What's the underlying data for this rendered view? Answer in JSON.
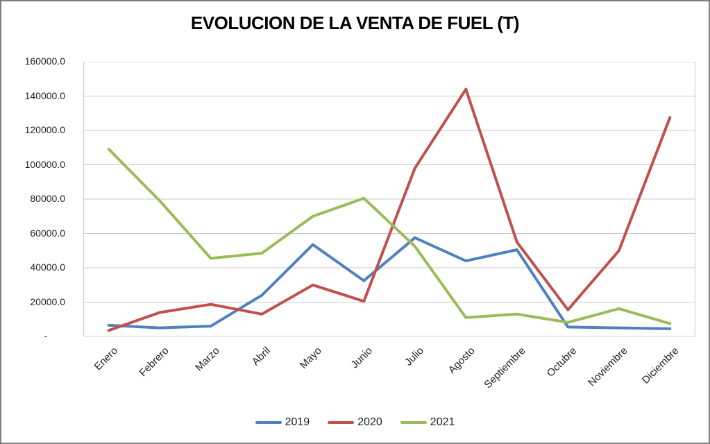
{
  "title": "EVOLUCION DE LA VENTA DE FUEL (T)",
  "chart_data": {
    "type": "line",
    "title": "EVOLUCION DE LA VENTA DE FUEL (T)",
    "xlabel": "",
    "ylabel": "",
    "categories": [
      "Enero",
      "Febrero",
      "Marzo",
      "Abril",
      "Mayo",
      "Junio",
      "Julio",
      "Agosto",
      "Septiembre",
      "Octubre",
      "Noviembre",
      "Diciembre"
    ],
    "series": [
      {
        "name": "2019",
        "color": "#4F81BD",
        "values": [
          6500,
          5000,
          6000,
          24000,
          53500,
          32500,
          57500,
          44000,
          50500,
          5500,
          5000,
          4500
        ]
      },
      {
        "name": "2020",
        "color": "#C0504D",
        "values": [
          3500,
          14000,
          18700,
          13000,
          30000,
          20500,
          98000,
          144000,
          55000,
          15500,
          50000,
          127500
        ]
      },
      {
        "name": "2021",
        "color": "#9BBB59",
        "values": [
          109000,
          79000,
          45500,
          48500,
          70000,
          80500,
          52500,
          11000,
          13000,
          8200,
          16200,
          7500
        ]
      }
    ],
    "ylim": [
      0,
      160000
    ],
    "ytick_step": 20000,
    "ytick_labels_top_to_bottom": [
      "160000.0",
      "140000.0",
      "120000.0",
      "100000.0",
      "80000.0",
      "60000.0",
      "40000.0",
      "20000.0",
      "-"
    ],
    "grid": true,
    "legend_position": "bottom"
  },
  "colors": {
    "series_2019": "#4F81BD",
    "series_2020": "#C0504D",
    "series_2021": "#9BBB59",
    "gridline": "#C8C8C8",
    "axis_line": "#A6A6A6",
    "axis_text": "#1F1F1F",
    "frame_border": "#7F7F7F"
  }
}
